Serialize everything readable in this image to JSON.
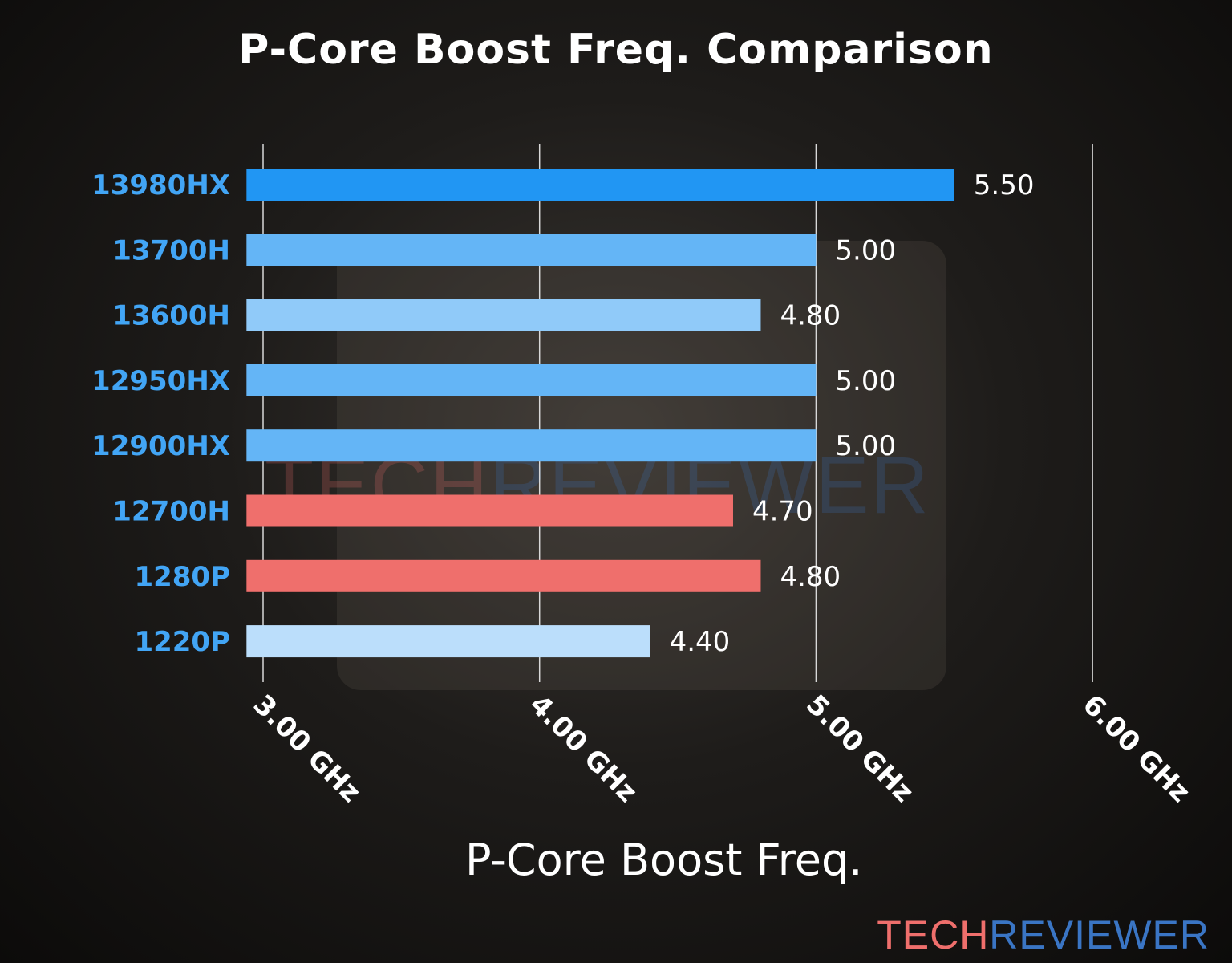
{
  "chart_data": {
    "type": "bar",
    "orientation": "horizontal",
    "title": "P-Core Boost Freq. Comparison",
    "xlabel": "P-Core Boost Freq.",
    "ylabel": "",
    "categories": [
      "13980HX",
      "13700H",
      "13600H",
      "12950HX",
      "12900HX",
      "12700H",
      "1280P",
      "1220P"
    ],
    "values": [
      5.5,
      5.0,
      4.8,
      5.0,
      5.0,
      4.7,
      4.8,
      4.4
    ],
    "value_labels": [
      "5.50",
      "5.00",
      "4.80",
      "5.00",
      "5.00",
      "4.70",
      "4.80",
      "4.40"
    ],
    "bar_colors": [
      "#2196F3",
      "#64B5F6",
      "#90CAF9",
      "#64B5F6",
      "#64B5F6",
      "#EF6F6C",
      "#EF6F6C",
      "#BBDEFB"
    ],
    "xticks": [
      3,
      4,
      5,
      6
    ],
    "xtick_labels": [
      "3.00 GHz",
      "4.00 GHz",
      "5.00 GHz",
      "6.00 GHz"
    ],
    "xlim": [
      2.94,
      6.0
    ],
    "grid": "vertical",
    "category_label_color": "#42A5F5"
  },
  "branding": {
    "watermark_a": "TECH",
    "watermark_b": "REVIEWER",
    "logo_a": "TECH",
    "logo_b": "REVIEWER",
    "color_a": "#EF6F6C",
    "color_b": "#3A75C4"
  }
}
